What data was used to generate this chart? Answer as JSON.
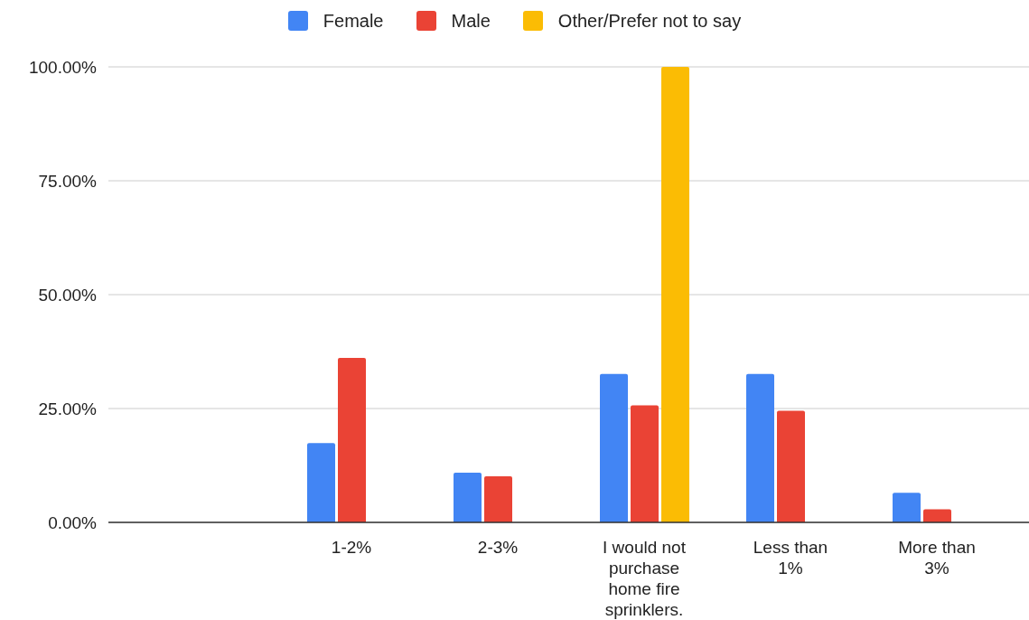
{
  "chart_data": {
    "type": "bar",
    "categories": [
      null,
      "1-2%",
      "2-3%",
      "I would not purchase home fire sprinklers.",
      "Less than 1%",
      "More than 3%"
    ],
    "series": [
      {
        "name": "Female",
        "color": "#4285f4",
        "values": [
          null,
          17.4,
          10.9,
          32.6,
          32.6,
          6.5
        ]
      },
      {
        "name": "Male",
        "color": "#ea4335",
        "values": [
          null,
          36.1,
          10.1,
          25.7,
          24.5,
          2.9
        ]
      },
      {
        "name": "Other/Prefer not to say",
        "color": "#fbbc04",
        "values": [
          null,
          null,
          null,
          100,
          null,
          null
        ]
      }
    ],
    "ylim": [
      0,
      100
    ],
    "yticks": [
      {
        "value": 0,
        "label": "0.00%"
      },
      {
        "value": 25,
        "label": "25.00%"
      },
      {
        "value": 50,
        "label": "50.00%"
      },
      {
        "value": 75,
        "label": "75.00%"
      },
      {
        "value": 100,
        "label": "100.00%"
      }
    ],
    "grid": "y",
    "legend": "top"
  }
}
